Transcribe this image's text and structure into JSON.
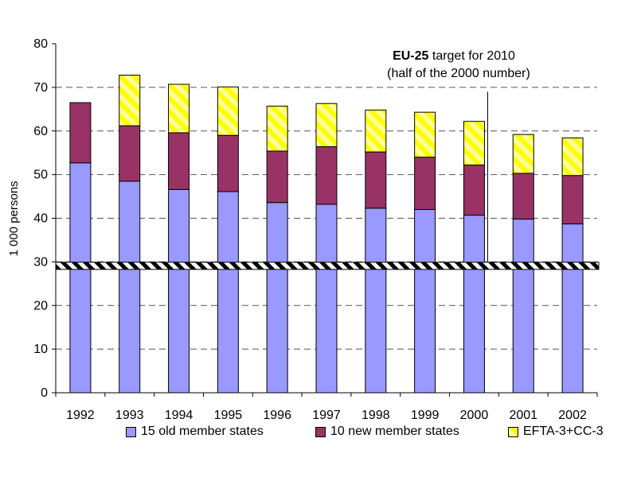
{
  "chart_data": {
    "type": "bar",
    "stacked": true,
    "categories": [
      "1992",
      "1993",
      "1994",
      "1995",
      "1996",
      "1997",
      "1998",
      "1999",
      "2000",
      "2001",
      "2002"
    ],
    "series": [
      {
        "name": "15 old member states",
        "color": "#9999ff",
        "values": [
          52.7,
          48.5,
          46.6,
          46.1,
          43.6,
          43.2,
          42.3,
          42.0,
          40.7,
          39.8,
          38.7
        ]
      },
      {
        "name": "10 new member states",
        "color": "#993366",
        "values": [
          13.8,
          12.7,
          13.0,
          12.9,
          11.8,
          13.2,
          12.9,
          12.0,
          11.5,
          10.5,
          11.1
        ]
      },
      {
        "name": "EFTA-3+CC-3",
        "color": "#ffff99",
        "pattern": "diagonal-hatch",
        "values": [
          null,
          11.6,
          11.1,
          11.1,
          10.3,
          9.9,
          9.6,
          10.3,
          10.0,
          8.9,
          8.6
        ]
      }
    ],
    "ylabel": "1 000 persons",
    "ylim": [
      0,
      80
    ],
    "yticks": [
      0,
      10,
      20,
      30,
      40,
      50,
      60,
      70,
      80
    ],
    "grid": "dashed horizontal",
    "axis_break_at": 29,
    "legend_position": "bottom",
    "annotation": {
      "bold": "EU-25",
      "rest": " target for 2010",
      "line2": "(half of the 2000 number)"
    },
    "target_marker_x": "2000"
  }
}
